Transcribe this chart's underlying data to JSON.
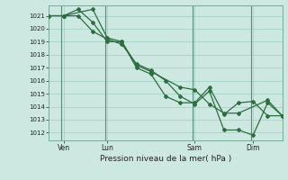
{
  "bg_color": "#cce8e0",
  "grid_color": "#9ecfc4",
  "line_color": "#2d6e3e",
  "marker_color": "#2d6e3e",
  "title": "Pression niveau de la mer( hPa )",
  "ylabel_values": [
    1012,
    1013,
    1014,
    1015,
    1016,
    1017,
    1018,
    1019,
    1020,
    1021
  ],
  "xlim": [
    0,
    96
  ],
  "ylim": [
    1011.4,
    1021.8
  ],
  "xtick_positions": [
    6,
    24,
    60,
    84
  ],
  "xtick_labels": [
    "Ven",
    "Lun",
    "Sam",
    "Dim"
  ],
  "vline_positions": [
    5,
    23,
    59,
    83
  ],
  "line1_x": [
    0,
    6,
    12,
    18,
    24,
    30,
    36,
    42,
    48,
    54,
    60,
    66,
    72,
    78,
    84,
    90,
    96
  ],
  "line1_y": [
    1021.0,
    1021.0,
    1021.5,
    1020.5,
    1019.0,
    1019.0,
    1017.0,
    1016.5,
    1014.8,
    1014.3,
    1014.3,
    1015.5,
    1013.4,
    1014.3,
    1014.4,
    1013.3,
    1013.3
  ],
  "line2_x": [
    0,
    6,
    12,
    18,
    24,
    30,
    36,
    42,
    48,
    54,
    60,
    66,
    72,
    78,
    84,
    90,
    96
  ],
  "line2_y": [
    1021.0,
    1021.0,
    1021.0,
    1019.8,
    1019.2,
    1018.8,
    1017.3,
    1016.8,
    1016.0,
    1014.8,
    1014.2,
    1015.2,
    1012.2,
    1012.2,
    1011.8,
    1014.3,
    1013.3
  ],
  "line3_x": [
    6,
    18,
    24,
    30,
    36,
    42,
    54,
    60,
    66,
    72,
    78,
    90,
    96
  ],
  "line3_y": [
    1021.0,
    1021.5,
    1019.3,
    1019.0,
    1017.2,
    1016.7,
    1015.5,
    1015.3,
    1014.2,
    1013.5,
    1013.5,
    1014.5,
    1013.3
  ]
}
